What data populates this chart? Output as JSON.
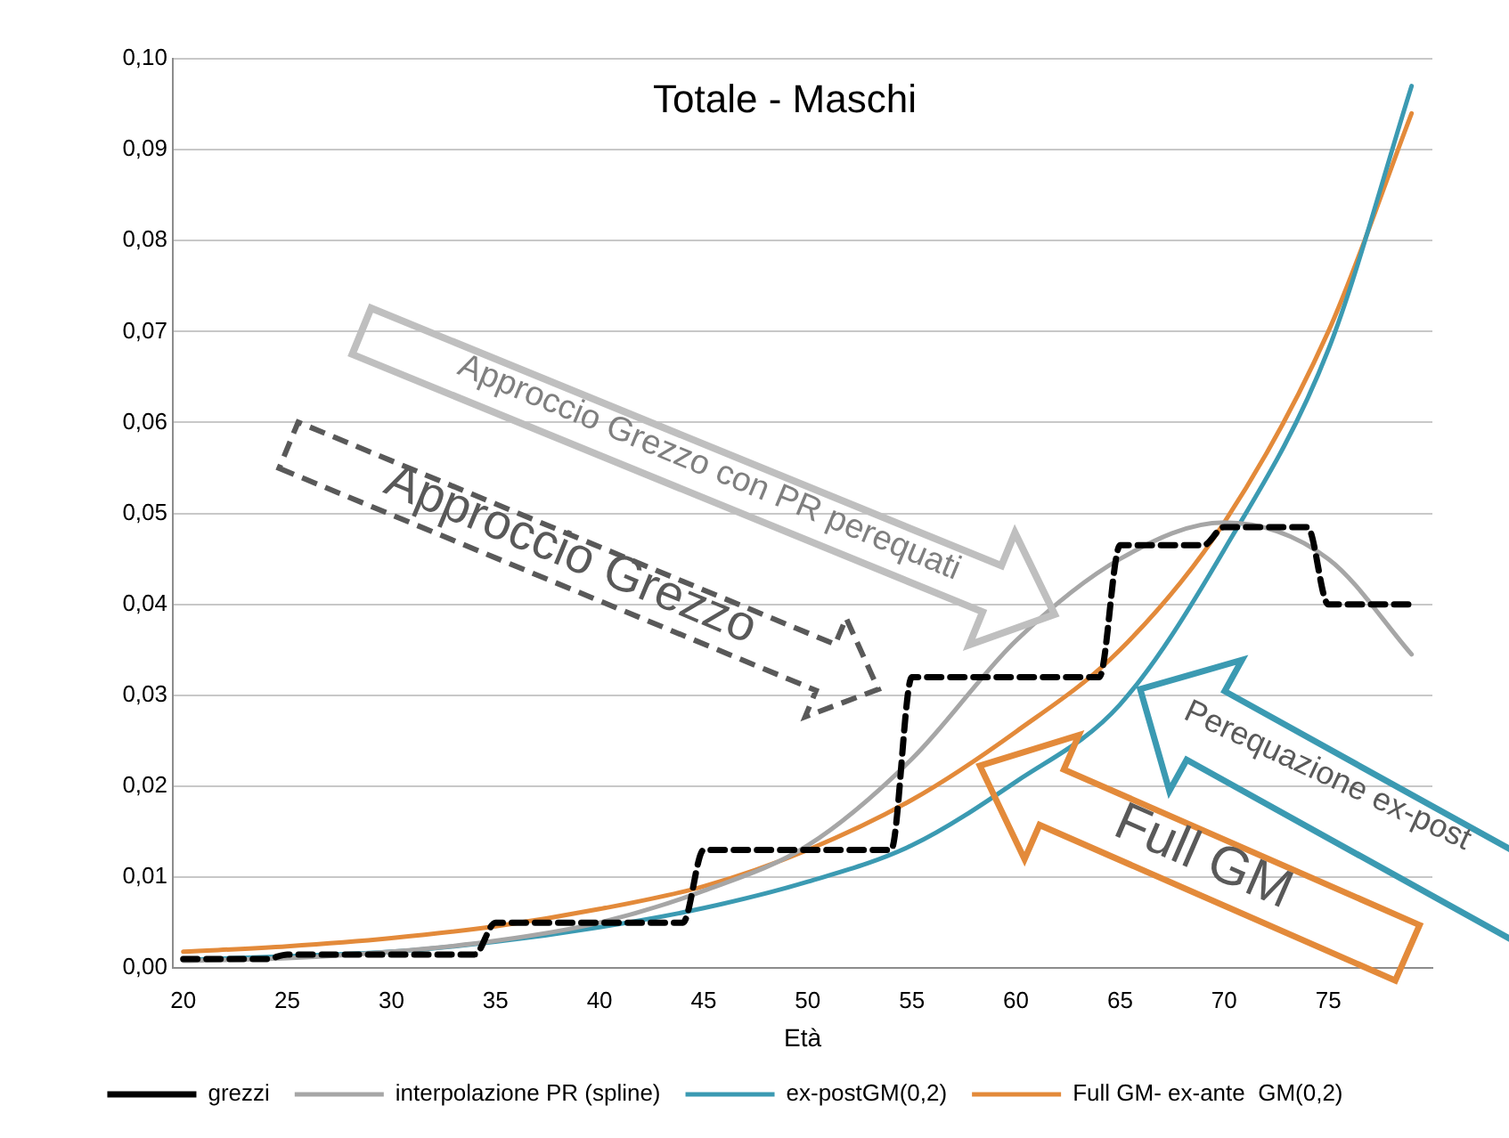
{
  "chart_data": {
    "type": "line",
    "title": "Totale - Maschi",
    "xlabel": "Età",
    "x": [
      20,
      21,
      22,
      23,
      24,
      25,
      26,
      27,
      28,
      29,
      30,
      31,
      32,
      33,
      34,
      35,
      36,
      37,
      38,
      39,
      40,
      41,
      42,
      43,
      44,
      45,
      46,
      47,
      48,
      49,
      50,
      51,
      52,
      53,
      54,
      55,
      56,
      57,
      58,
      59,
      60,
      61,
      62,
      63,
      64,
      65,
      66,
      67,
      68,
      69,
      70,
      71,
      72,
      73,
      74,
      75,
      76,
      77,
      78,
      79
    ],
    "xlim": [
      19.5,
      80
    ],
    "xticks": [
      20,
      25,
      30,
      35,
      40,
      45,
      50,
      55,
      60,
      65,
      70,
      75
    ],
    "ylim": [
      0,
      0.1
    ],
    "yticks": [
      {
        "value": 0,
        "label": "0,00"
      },
      {
        "value": 0.01,
        "label": "0,01"
      },
      {
        "value": 0.02,
        "label": "0,02"
      },
      {
        "value": 0.03,
        "label": "0,03"
      },
      {
        "value": 0.04,
        "label": "0,04"
      },
      {
        "value": 0.05,
        "label": "0,05"
      },
      {
        "value": 0.06,
        "label": "0,06"
      },
      {
        "value": 0.07,
        "label": "0,07"
      },
      {
        "value": 0.08,
        "label": "0,08"
      },
      {
        "value": 0.09,
        "label": "0,09"
      },
      {
        "value": 0.1,
        "label": "0,10"
      }
    ],
    "grid": "y",
    "legend": "bottom",
    "marker": "none",
    "series": [
      {
        "name": "grezzi",
        "color": "#000000",
        "line_style": "dashed",
        "values": [
          0.001,
          0.001,
          0.001,
          0.001,
          0.001,
          0.0015,
          0.0015,
          0.0015,
          0.0015,
          0.0015,
          0.0015,
          0.0015,
          0.0015,
          0.0015,
          0.0015,
          0.005,
          0.005,
          0.005,
          0.005,
          0.005,
          0.005,
          0.005,
          0.005,
          0.005,
          0.005,
          0.013,
          0.013,
          0.013,
          0.013,
          0.013,
          0.013,
          0.013,
          0.013,
          0.013,
          0.013,
          0.032,
          0.032,
          0.032,
          0.032,
          0.032,
          0.032,
          0.032,
          0.032,
          0.032,
          0.032,
          0.0465,
          0.0465,
          0.0465,
          0.0465,
          0.0465,
          0.0485,
          0.0485,
          0.0485,
          0.0485,
          0.0485,
          0.04,
          0.04,
          0.04,
          0.04,
          0.04
        ]
      },
      {
        "name": "interpolazione PR (spline)",
        "color": "#a6a6a6",
        "x": [
          20,
          25,
          30,
          35,
          40,
          45,
          50,
          55,
          60,
          65,
          70,
          75,
          79
        ],
        "values": [
          0.0008,
          0.0011,
          0.0018,
          0.003,
          0.005,
          0.0085,
          0.0135,
          0.023,
          0.036,
          0.045,
          0.049,
          0.045,
          0.0345
        ]
      },
      {
        "name": "ex-postGM(0,2)",
        "color": "#3b9ab2",
        "x": [
          20,
          25,
          30,
          35,
          40,
          45,
          50,
          55,
          60,
          65,
          70,
          75,
          79
        ],
        "values": [
          0.0009,
          0.0013,
          0.0018,
          0.0029,
          0.0045,
          0.0066,
          0.0095,
          0.0135,
          0.0205,
          0.029,
          0.046,
          0.068,
          0.097
        ]
      },
      {
        "name": "Full GM- ex-ante  GM(0,2)",
        "color": "#e38a3a",
        "x": [
          20,
          25,
          30,
          35,
          40,
          45,
          50,
          55,
          60,
          65,
          70,
          75,
          79
        ],
        "values": [
          0.0018,
          0.0024,
          0.0033,
          0.0046,
          0.0065,
          0.009,
          0.013,
          0.0185,
          0.026,
          0.035,
          0.049,
          0.07,
          0.094
        ]
      }
    ],
    "annotations": [
      "Approccio Grezzo con PR perequati",
      "Approccio Grezzo",
      "Perequazione ex-post",
      "Full GM"
    ]
  }
}
